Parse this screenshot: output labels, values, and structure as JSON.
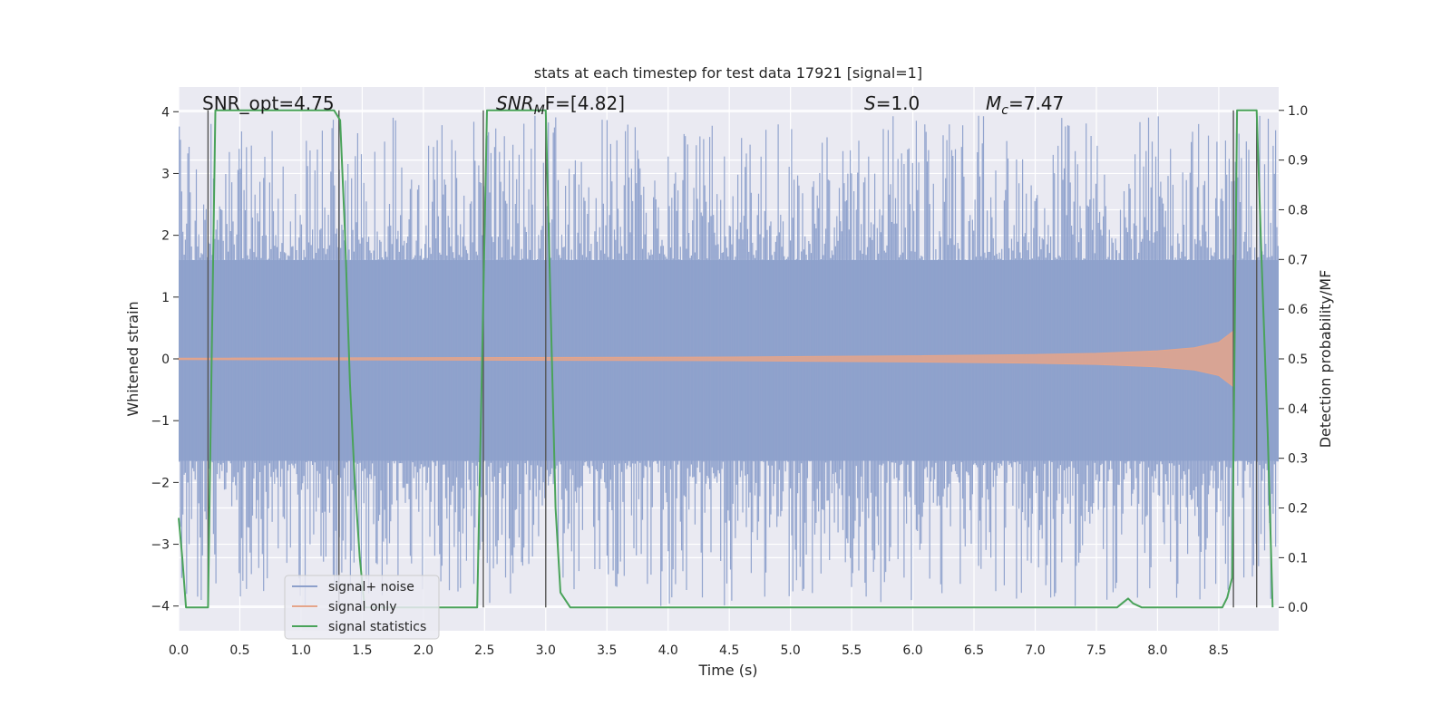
{
  "chart_data": {
    "type": "line",
    "title": "stats at each timestep for test data 17921 [signal=1]",
    "xlabel": "Time (s)",
    "ylabel": "Whitened strain",
    "ylabel_right": "Detection probability/MF",
    "xlim": [
      0.0,
      8.99
    ],
    "ylim": [
      -4.4,
      4.4
    ],
    "ylim_right": [
      -0.047,
      1.047
    ],
    "x_ticks": [
      "0.0",
      "0.5",
      "1.0",
      "1.5",
      "2.0",
      "2.5",
      "3.0",
      "3.5",
      "4.0",
      "4.5",
      "5.0",
      "5.5",
      "6.0",
      "6.5",
      "7.0",
      "7.5",
      "8.0",
      "8.5"
    ],
    "y_ticks": [
      "4",
      "3",
      "2",
      "1",
      "0",
      "−1",
      "−2",
      "−3",
      "−4"
    ],
    "y_ticks_right": [
      "1.0",
      "0.9",
      "0.8",
      "0.7",
      "0.6",
      "0.5",
      "0.4",
      "0.3",
      "0.2",
      "0.1",
      "0.0"
    ],
    "annotations": {
      "snr_opt": "SNR_opt=4.75",
      "snr_mf_base": "SNR",
      "snr_mf_sub": "M",
      "snr_mf_rest": "F=[4.82]",
      "s_base": "S",
      "s_rest": "=1.0",
      "mc_base": "M",
      "mc_sub": "c",
      "mc_rest": "=7.47"
    },
    "legend": [
      {
        "label": "signal+ noise",
        "color": "#8da0cb"
      },
      {
        "label": "signal only",
        "color": "#e5a58a"
      },
      {
        "label": "signal statistics",
        "color": "#4aa35a"
      }
    ],
    "series": [
      {
        "name": "signal statistics",
        "axis": "right",
        "x": [
          0.0,
          0.03,
          0.06,
          0.24,
          0.27,
          0.3,
          1.27,
          1.32,
          1.36,
          1.4,
          1.44,
          1.48,
          1.52,
          2.44,
          2.48,
          2.52,
          2.56,
          3.0,
          3.04,
          3.08,
          3.12,
          3.2,
          3.3,
          7.67,
          7.72,
          7.76,
          7.8,
          7.87,
          8.53,
          8.57,
          8.61,
          8.65,
          8.69,
          8.81,
          8.85,
          8.9,
          8.94
        ],
        "y": [
          0.18,
          0.1,
          0.0,
          0.0,
          0.5,
          1.0,
          1.0,
          0.98,
          0.75,
          0.45,
          0.25,
          0.1,
          0.0,
          0.0,
          0.5,
          1.0,
          1.0,
          1.0,
          0.6,
          0.2,
          0.03,
          0.0,
          0.0,
          0.0,
          0.01,
          0.018,
          0.008,
          0.0,
          0.0,
          0.02,
          0.06,
          1.0,
          1.0,
          1.0,
          0.7,
          0.35,
          0.0
        ]
      }
    ],
    "detection_lines": [
      0.24,
      1.31,
      2.49,
      3.0,
      8.62,
      8.81
    ],
    "noise_band": {
      "low": -1.65,
      "high": 1.6
    },
    "noise_spikes": {
      "max": 3.95,
      "min": -4.0,
      "count": 900
    },
    "signal_envelope": {
      "x": [
        0.0,
        4.5,
        6.0,
        7.0,
        7.5,
        8.0,
        8.3,
        8.5,
        8.62
      ],
      "amp": [
        0.01,
        0.03,
        0.05,
        0.07,
        0.09,
        0.13,
        0.18,
        0.27,
        0.45
      ]
    }
  }
}
